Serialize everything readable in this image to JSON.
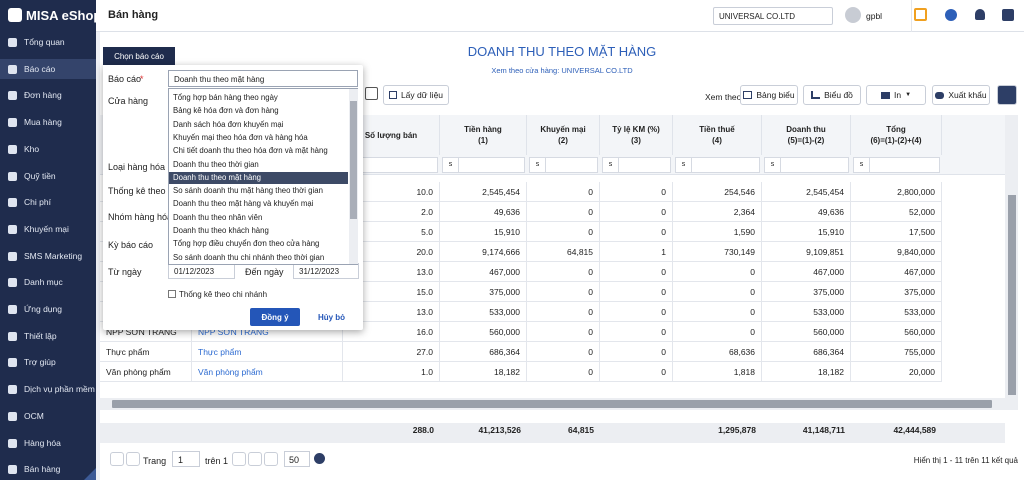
{
  "sidebar": {
    "logo": "MISA eShop",
    "active": 1,
    "items": [
      "Tổng quan",
      "Báo cáo",
      "Đơn hàng",
      "Mua hàng",
      "Kho",
      "Quỹ tiền",
      "Chi phí",
      "Khuyến mại",
      "SMS Marketing",
      "Danh mục",
      "Ứng dụng",
      "Thiết lập",
      "Trợ giúp",
      "Dịch vụ phần mềm",
      "OCM",
      "Hàng hóa",
      "Bán hàng"
    ]
  },
  "topbar": {
    "title": "Bán hàng",
    "store": "UNIVERSAL CO.LTD",
    "user": "gpbl"
  },
  "report": {
    "title": "DOANH THU THEO MẶT HÀNG",
    "subtitle": "Xem theo cửa hàng: UNIVERSAL CO.LTD"
  },
  "toolbar": {
    "fetch": "Lấy dữ liệu",
    "view_label": "Xem theo",
    "table": "Bảng biểu",
    "chart": "Biểu đồ",
    "print": "In",
    "export": "Xuất khẩu"
  },
  "table": {
    "columns": [
      [
        "Số lượng bán"
      ],
      [
        "Tiền hàng",
        "(1)"
      ],
      [
        "Khuyến mại",
        "(2)"
      ],
      [
        "Tỷ lệ KM (%)",
        "(3)"
      ],
      [
        "Tiền thuế",
        "(4)"
      ],
      [
        "Doanh thu",
        "(5)=(1)-(2)"
      ],
      [
        "Tổng",
        "(6)=(1)-(2)+(4)"
      ]
    ],
    "filter_symbol": "s",
    "rows": [
      [
        null,
        null,
        "10.0",
        "2,545,454",
        "0",
        "0",
        "254,546",
        "2,545,454",
        "2,800,000"
      ],
      [
        null,
        null,
        "2.0",
        "49,636",
        "0",
        "0",
        "2,364",
        "49,636",
        "52,000"
      ],
      [
        null,
        null,
        "5.0",
        "15,910",
        "0",
        "0",
        "1,590",
        "15,910",
        "17,500"
      ],
      [
        null,
        null,
        "20.0",
        "9,174,666",
        "64,815",
        "1",
        "730,149",
        "9,109,851",
        "9,840,000"
      ],
      [
        null,
        null,
        "13.0",
        "467,000",
        "0",
        "0",
        "0",
        "467,000",
        "467,000"
      ],
      [
        null,
        null,
        "15.0",
        "375,000",
        "0",
        "0",
        "0",
        "375,000",
        "375,000"
      ],
      [
        null,
        null,
        "13.0",
        "533,000",
        "0",
        "0",
        "0",
        "533,000",
        "533,000"
      ],
      [
        "NPP SƠN TRANG",
        "NPP SƠN TRANG",
        "16.0",
        "560,000",
        "0",
        "0",
        "0",
        "560,000",
        "560,000"
      ],
      [
        "Thực phẩm",
        "Thực phẩm",
        "27.0",
        "686,364",
        "0",
        "0",
        "68,636",
        "686,364",
        "755,000"
      ],
      [
        "Văn phòng phẩm",
        "Văn phòng phẩm",
        "1.0",
        "18,182",
        "0",
        "0",
        "1,818",
        "18,182",
        "20,000"
      ]
    ],
    "totals": [
      "288.0",
      "41,213,526",
      "64,815",
      null,
      "1,295,878",
      "41,148,711",
      "42,444,589"
    ]
  },
  "pager": {
    "page_label": "Trang",
    "page": "1",
    "of": "trên 1",
    "page_size": "50",
    "summary": "Hiển thị 1 - 11 trên 11 kết quả"
  },
  "dialog": {
    "tab": "Chọn báo cáo",
    "report_label": "Báo cáo",
    "required": "*",
    "report_value": "Doanh thu theo mặt hàng",
    "labels": [
      "Cửa hàng",
      "Loại hàng hóa",
      "Thống kê theo",
      "Nhóm hàng hóa",
      "Kỳ báo cáo",
      "Từ ngày"
    ],
    "to_label": "Đến ngày",
    "from_date": "01/12/2023",
    "to_date": "31/12/2023",
    "checkbox": "Thống kê theo chi nhánh",
    "ok": "Đồng ý",
    "cancel": "Hủy bỏ",
    "selected": 6,
    "options": [
      "Tổng hợp bán hàng theo ngày",
      "Bảng kê hóa đơn và đơn hàng",
      "Danh sách hóa đơn khuyến mại",
      "Khuyến mại theo hóa đơn và hàng hóa",
      "Chi tiết doanh thu theo hóa đơn và mặt hàng",
      "Doanh thu theo thời gian",
      "Doanh thu theo mặt hàng",
      "So sánh doanh thu mặt hàng theo thời gian",
      "Doanh thu theo mặt hàng và khuyến mại",
      "Doanh thu theo nhân viên",
      "Doanh thu theo khách hàng",
      "Tổng hợp điều chuyển đơn theo cửa hàng",
      "So sánh doanh thu chi nhánh theo thời gian"
    ]
  }
}
